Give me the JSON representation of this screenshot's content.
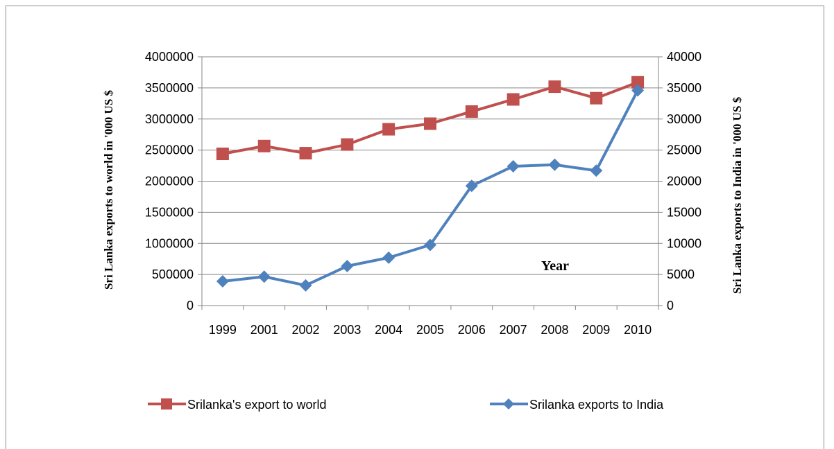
{
  "chart_data": {
    "type": "line",
    "categories": [
      "1999",
      "2001",
      "2002",
      "2003",
      "2004",
      "2005",
      "2006",
      "2007",
      "2008",
      "2009",
      "2010"
    ],
    "series": [
      {
        "name": "Srilanka's export to world",
        "axis": "left",
        "color": "#c0504d",
        "marker": "square",
        "values": [
          2440000,
          2565000,
          2450000,
          2590000,
          2835000,
          2925000,
          3120000,
          3315000,
          3520000,
          3335000,
          3590000
        ]
      },
      {
        "name": "Srilanka exports to India",
        "axis": "right",
        "color": "#4f81bd",
        "marker": "diamond",
        "values": [
          3900,
          4650,
          3250,
          6350,
          7700,
          9750,
          19250,
          22400,
          22650,
          21700,
          34600
        ]
      }
    ],
    "ylabel": "Sri Lanka  exports to  world in '000 US $",
    "y2label": "Sri Lanka  exports to  India in '000 US $",
    "annotation": "Year",
    "ylim": [
      0,
      4000000
    ],
    "y2lim": [
      0,
      40000
    ],
    "yticks": [
      "0",
      "500000",
      "1000000",
      "1500000",
      "2000000",
      "2500000",
      "3000000",
      "3500000",
      "4000000"
    ],
    "y2ticks": [
      "0",
      "5000",
      "10000",
      "15000",
      "20000",
      "25000",
      "30000",
      "35000",
      "40000"
    ],
    "grid": true,
    "legend_position": "bottom"
  }
}
